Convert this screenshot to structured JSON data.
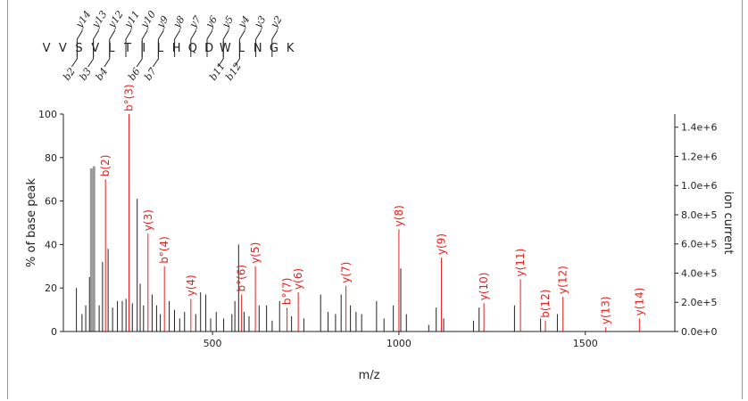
{
  "sequence": {
    "residues": [
      "V",
      "V",
      "S",
      "V",
      "L",
      "T",
      "I",
      "L",
      "H",
      "Q",
      "D",
      "W",
      "L",
      "N",
      "G",
      "K"
    ],
    "y_ions": [
      {
        "label": "y14",
        "after": 2
      },
      {
        "label": "y13",
        "after": 3
      },
      {
        "label": "y12",
        "after": 4
      },
      {
        "label": "y11",
        "after": 5
      },
      {
        "label": "y10",
        "after": 6
      },
      {
        "label": "y9",
        "after": 7
      },
      {
        "label": "y8",
        "after": 8
      },
      {
        "label": "y7",
        "after": 9
      },
      {
        "label": "y6",
        "after": 10
      },
      {
        "label": "y5",
        "after": 11
      },
      {
        "label": "y4",
        "after": 12
      },
      {
        "label": "y3",
        "after": 13
      },
      {
        "label": "y2",
        "after": 14
      }
    ],
    "b_ions": [
      {
        "label": "b2",
        "after": 2
      },
      {
        "label": "b3",
        "after": 3
      },
      {
        "label": "b4",
        "after": 4
      },
      {
        "label": "b6",
        "after": 6
      },
      {
        "label": "b7",
        "after": 7
      },
      {
        "label": "b11",
        "after": 11
      },
      {
        "label": "b12",
        "after": 12
      }
    ]
  },
  "chart_data": {
    "type": "bar",
    "title": "",
    "xlabel": "m/z",
    "ylabel": "% of base peak",
    "y2label": "ion current",
    "xlim": [
      100,
      1740
    ],
    "ylim": [
      0,
      100
    ],
    "y2lim": [
      0,
      1490000
    ],
    "xticks": [
      500,
      1000,
      1500
    ],
    "xtick_labels": [
      "500",
      "1000",
      "1500"
    ],
    "yticks": [
      0,
      20,
      40,
      60,
      80,
      100
    ],
    "ytick_labels": [
      "0",
      "20",
      "40",
      "60",
      "80",
      "100"
    ],
    "y2ticks": [
      0,
      200000,
      400000,
      600000,
      800000,
      1000000,
      1200000,
      1400000
    ],
    "y2tick_labels": [
      "0.0e+0",
      "2.0e+5",
      "4.0e+5",
      "6.0e+5",
      "8.0e+5",
      "1.0e+6",
      "1.2e+6",
      "1.4e+6"
    ],
    "colors": {
      "annotated": "#e8201e",
      "unannotated": "#222222",
      "base": "#999999"
    },
    "annotated_peaks": [
      {
        "mz": 213,
        "intensity": 70,
        "label": "b(2)"
      },
      {
        "mz": 276,
        "intensity": 100,
        "label": "b°(3)"
      },
      {
        "mz": 327,
        "intensity": 45,
        "label": "y(3)"
      },
      {
        "mz": 371,
        "intensity": 30,
        "label": "b°(4)"
      },
      {
        "mz": 442,
        "intensity": 15,
        "label": "y(4)"
      },
      {
        "mz": 578,
        "intensity": 17,
        "label": "b°(6)"
      },
      {
        "mz": 615,
        "intensity": 30,
        "label": "y(5)"
      },
      {
        "mz": 700,
        "intensity": 11,
        "label": "b°(7)"
      },
      {
        "mz": 730,
        "intensity": 18,
        "label": "y(6)"
      },
      {
        "mz": 858,
        "intensity": 21,
        "label": "y(7)"
      },
      {
        "mz": 1000,
        "intensity": 47,
        "label": "y(8)"
      },
      {
        "mz": 1114,
        "intensity": 34,
        "label": "y(9)"
      },
      {
        "mz": 1228,
        "intensity": 13,
        "label": "y(10)"
      },
      {
        "mz": 1326,
        "intensity": 24,
        "label": "y(11)"
      },
      {
        "mz": 1393,
        "intensity": 5,
        "label": "b(12)"
      },
      {
        "mz": 1440,
        "intensity": 16,
        "label": "y(12)"
      },
      {
        "mz": 1555,
        "intensity": 2,
        "label": "y(13)"
      },
      {
        "mz": 1645,
        "intensity": 6,
        "label": "y(14)"
      }
    ],
    "other_peaks": [
      {
        "mz": 175,
        "intensity": 75
      },
      {
        "mz": 182,
        "intensity": 76
      },
      {
        "mz": 170,
        "intensity": 25
      },
      {
        "mz": 160,
        "intensity": 12
      },
      {
        "mz": 150,
        "intensity": 8
      },
      {
        "mz": 135,
        "intensity": 20
      },
      {
        "mz": 196,
        "intensity": 12
      },
      {
        "mz": 205,
        "intensity": 32
      },
      {
        "mz": 220,
        "intensity": 38
      },
      {
        "mz": 232,
        "intensity": 11
      },
      {
        "mz": 245,
        "intensity": 14
      },
      {
        "mz": 258,
        "intensity": 14
      },
      {
        "mz": 268,
        "intensity": 15
      },
      {
        "mz": 285,
        "intensity": 13
      },
      {
        "mz": 298,
        "intensity": 61
      },
      {
        "mz": 306,
        "intensity": 22
      },
      {
        "mz": 315,
        "intensity": 12
      },
      {
        "mz": 338,
        "intensity": 17
      },
      {
        "mz": 350,
        "intensity": 12
      },
      {
        "mz": 360,
        "intensity": 8
      },
      {
        "mz": 384,
        "intensity": 14
      },
      {
        "mz": 398,
        "intensity": 10
      },
      {
        "mz": 412,
        "intensity": 6
      },
      {
        "mz": 425,
        "intensity": 9
      },
      {
        "mz": 455,
        "intensity": 8
      },
      {
        "mz": 468,
        "intensity": 18
      },
      {
        "mz": 482,
        "intensity": 17
      },
      {
        "mz": 495,
        "intensity": 6
      },
      {
        "mz": 510,
        "intensity": 9
      },
      {
        "mz": 530,
        "intensity": 6
      },
      {
        "mz": 552,
        "intensity": 8
      },
      {
        "mz": 560,
        "intensity": 14
      },
      {
        "mz": 570,
        "intensity": 40
      },
      {
        "mz": 585,
        "intensity": 9
      },
      {
        "mz": 598,
        "intensity": 7
      },
      {
        "mz": 625,
        "intensity": 12
      },
      {
        "mz": 645,
        "intensity": 12
      },
      {
        "mz": 660,
        "intensity": 5
      },
      {
        "mz": 680,
        "intensity": 14
      },
      {
        "mz": 712,
        "intensity": 7
      },
      {
        "mz": 745,
        "intensity": 6
      },
      {
        "mz": 790,
        "intensity": 17
      },
      {
        "mz": 810,
        "intensity": 9
      },
      {
        "mz": 830,
        "intensity": 8
      },
      {
        "mz": 845,
        "intensity": 17
      },
      {
        "mz": 870,
        "intensity": 12
      },
      {
        "mz": 885,
        "intensity": 9
      },
      {
        "mz": 900,
        "intensity": 8
      },
      {
        "mz": 940,
        "intensity": 14
      },
      {
        "mz": 960,
        "intensity": 6
      },
      {
        "mz": 985,
        "intensity": 12
      },
      {
        "mz": 1005,
        "intensity": 29
      },
      {
        "mz": 1020,
        "intensity": 8
      },
      {
        "mz": 1080,
        "intensity": 3
      },
      {
        "mz": 1100,
        "intensity": 11
      },
      {
        "mz": 1120,
        "intensity": 6
      },
      {
        "mz": 1200,
        "intensity": 5
      },
      {
        "mz": 1215,
        "intensity": 11
      },
      {
        "mz": 1310,
        "intensity": 12
      },
      {
        "mz": 1380,
        "intensity": 6
      },
      {
        "mz": 1425,
        "intensity": 8
      }
    ]
  }
}
